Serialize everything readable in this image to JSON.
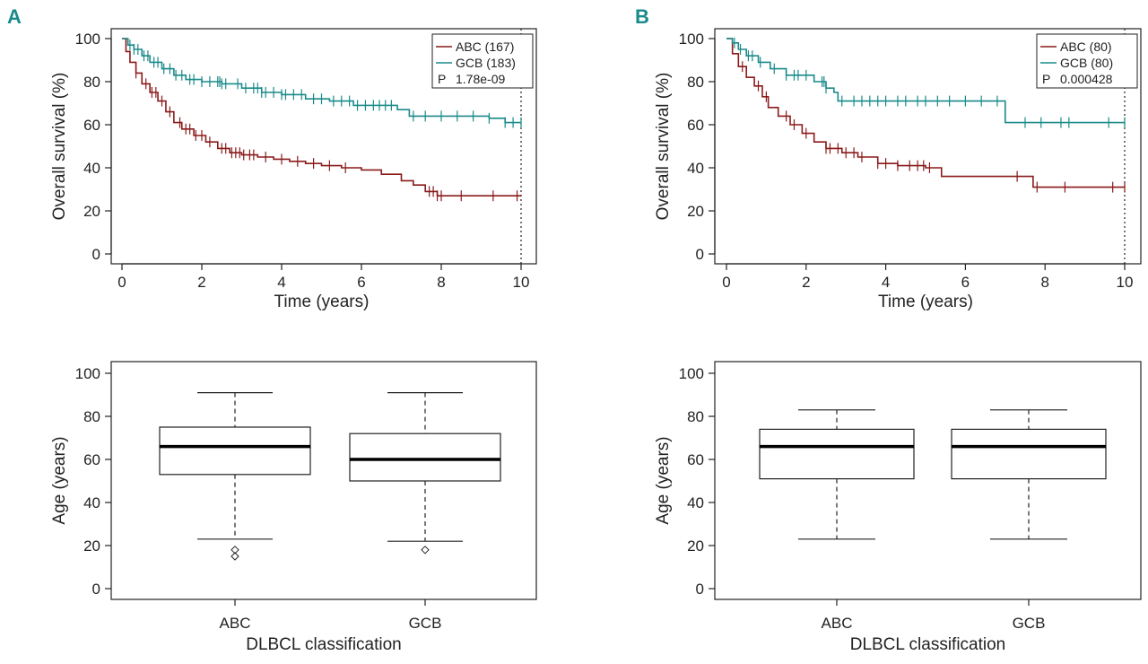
{
  "colors": {
    "abc": "#8b1a1a",
    "gcb": "#1a8a8a",
    "axis": "#222222"
  },
  "panels": [
    {
      "letter": "A"
    },
    {
      "letter": "B"
    }
  ],
  "chart_data": [
    {
      "id": "A-survival",
      "type": "line",
      "title": "",
      "xlabel": "Time (years)",
      "ylabel": "Overall survival (%)",
      "xlim": [
        0,
        10
      ],
      "ylim": [
        0,
        100
      ],
      "xticks": [
        0,
        2,
        4,
        6,
        8,
        10
      ],
      "yticks": [
        0,
        20,
        40,
        60,
        80,
        100
      ],
      "cutoff_x": 10,
      "legend": {
        "position": "top-right",
        "entries": [
          "ABC (167)",
          "GCB (183)"
        ],
        "p_label": "P",
        "p_value": "1.78e-09"
      },
      "series": [
        {
          "name": "ABC (167)",
          "color_key": "abc",
          "x": [
            0,
            0.1,
            0.2,
            0.35,
            0.5,
            0.7,
            0.9,
            1.1,
            1.3,
            1.5,
            1.8,
            2.1,
            2.4,
            2.7,
            3.0,
            3.4,
            3.8,
            4.2,
            4.6,
            5.0,
            5.5,
            6.0,
            6.5,
            7.0,
            7.3,
            7.6,
            7.9,
            8.5,
            9.2,
            10.0
          ],
          "y": [
            100,
            94,
            89,
            84,
            79,
            75,
            71,
            66,
            61,
            58,
            55,
            52,
            49,
            47,
            46,
            45,
            44,
            43,
            42,
            41,
            40,
            39,
            37,
            34,
            32,
            29,
            27,
            27,
            27,
            27
          ],
          "censor_x": [
            0.35,
            0.6,
            0.75,
            0.85,
            1.0,
            1.2,
            1.45,
            1.6,
            1.7,
            1.85,
            2.0,
            2.2,
            2.5,
            2.6,
            2.75,
            2.85,
            2.95,
            3.05,
            3.2,
            3.3,
            3.6,
            4.0,
            4.4,
            4.8,
            5.2,
            5.6,
            7.7,
            7.8,
            7.9,
            8.0,
            8.5,
            9.3,
            9.9
          ]
        },
        {
          "name": "GCB (183)",
          "color_key": "gcb",
          "x": [
            0,
            0.15,
            0.3,
            0.5,
            0.7,
            1.0,
            1.3,
            1.6,
            2.0,
            2.5,
            3.0,
            3.5,
            4.0,
            4.6,
            5.2,
            5.8,
            6.5,
            6.9,
            7.2,
            8.0,
            8.6,
            9.2,
            9.6,
            10.0
          ],
          "y": [
            100,
            97,
            95,
            92,
            89,
            86,
            83,
            81,
            80,
            79,
            77,
            75,
            74,
            72,
            71,
            69,
            69,
            67,
            64,
            64,
            64,
            63,
            61,
            61
          ],
          "censor_x": [
            0.2,
            0.3,
            0.4,
            0.55,
            0.65,
            0.8,
            0.9,
            1.05,
            1.2,
            1.35,
            1.5,
            1.7,
            1.8,
            2.0,
            2.2,
            2.4,
            2.45,
            2.5,
            2.6,
            2.9,
            3.1,
            3.3,
            3.4,
            3.5,
            3.6,
            3.8,
            4.0,
            4.1,
            4.3,
            4.5,
            4.8,
            5.0,
            5.3,
            5.5,
            5.7,
            5.9,
            6.1,
            6.3,
            6.45,
            6.6,
            6.75,
            7.3,
            7.6,
            8.0,
            8.4,
            8.8,
            9.2,
            9.6,
            9.8,
            10.0
          ]
        }
      ]
    },
    {
      "id": "B-survival",
      "type": "line",
      "title": "",
      "xlabel": "Time (years)",
      "ylabel": "Overall survival (%)",
      "xlim": [
        0,
        10
      ],
      "ylim": [
        0,
        100
      ],
      "xticks": [
        0,
        2,
        4,
        6,
        8,
        10
      ],
      "yticks": [
        0,
        20,
        40,
        60,
        80,
        100
      ],
      "cutoff_x": 10,
      "legend": {
        "position": "top-right",
        "entries": [
          "ABC (80)",
          "GCB (80)"
        ],
        "p_label": "P",
        "p_value": "0.000428"
      },
      "series": [
        {
          "name": "ABC (80)",
          "color_key": "abc",
          "x": [
            0,
            0.15,
            0.3,
            0.5,
            0.7,
            0.9,
            1.05,
            1.3,
            1.6,
            1.9,
            2.2,
            2.5,
            2.9,
            3.3,
            3.8,
            4.3,
            5.0,
            5.4,
            6.5,
            7.3,
            7.7,
            8.5,
            10.0
          ],
          "y": [
            100,
            93,
            87,
            82,
            78,
            73,
            68,
            64,
            60,
            56,
            52,
            49,
            47,
            45,
            42,
            41,
            40,
            36,
            36,
            36,
            31,
            31,
            31
          ],
          "censor_x": [
            0.4,
            0.8,
            1.0,
            1.5,
            1.7,
            2.0,
            2.5,
            2.6,
            2.8,
            3.0,
            3.2,
            3.4,
            3.8,
            4.0,
            4.3,
            4.6,
            4.8,
            4.95,
            5.1,
            7.3,
            7.8,
            8.5,
            9.7,
            10.0
          ]
        },
        {
          "name": "GCB (80)",
          "color_key": "gcb",
          "x": [
            0,
            0.15,
            0.3,
            0.5,
            0.8,
            1.1,
            1.5,
            2.2,
            2.5,
            2.7,
            2.8,
            6.9,
            7.0,
            10.0
          ],
          "y": [
            100,
            98,
            95,
            92,
            89,
            86,
            83,
            80,
            77,
            75,
            71,
            71,
            61,
            61
          ],
          "censor_x": [
            0.2,
            0.35,
            0.55,
            0.65,
            0.85,
            1.2,
            1.5,
            1.7,
            1.8,
            2.0,
            2.4,
            2.45,
            2.5,
            2.9,
            3.2,
            3.4,
            3.6,
            3.8,
            4.0,
            4.3,
            4.5,
            4.8,
            5.0,
            5.3,
            5.6,
            6.0,
            6.4,
            6.8,
            7.5,
            7.9,
            8.4,
            8.6,
            9.6,
            10.0
          ]
        }
      ]
    },
    {
      "id": "A-age",
      "type": "box",
      "title": "",
      "xlabel": "DLBCL classification",
      "ylabel": "Age (years)",
      "ylim": [
        0,
        100
      ],
      "yticks": [
        0,
        20,
        40,
        60,
        80,
        100
      ],
      "categories": [
        "ABC",
        "GCB"
      ],
      "boxes": [
        {
          "name": "ABC",
          "whisker_low": 23,
          "q1": 53,
          "median": 66,
          "q3": 75,
          "whisker_high": 91,
          "outliers": [
            18,
            15
          ]
        },
        {
          "name": "GCB",
          "whisker_low": 22,
          "q1": 50,
          "median": 60,
          "q3": 72,
          "whisker_high": 91,
          "outliers": [
            18
          ]
        }
      ]
    },
    {
      "id": "B-age",
      "type": "box",
      "title": "",
      "xlabel": "DLBCL classification",
      "ylabel": "Age (years)",
      "ylim": [
        0,
        100
      ],
      "yticks": [
        0,
        20,
        40,
        60,
        80,
        100
      ],
      "categories": [
        "ABC",
        "GCB"
      ],
      "boxes": [
        {
          "name": "ABC",
          "whisker_low": 23,
          "q1": 51,
          "median": 66,
          "q3": 74,
          "whisker_high": 83,
          "outliers": []
        },
        {
          "name": "GCB",
          "whisker_low": 23,
          "q1": 51,
          "median": 66,
          "q3": 74,
          "whisker_high": 83,
          "outliers": []
        }
      ]
    }
  ]
}
